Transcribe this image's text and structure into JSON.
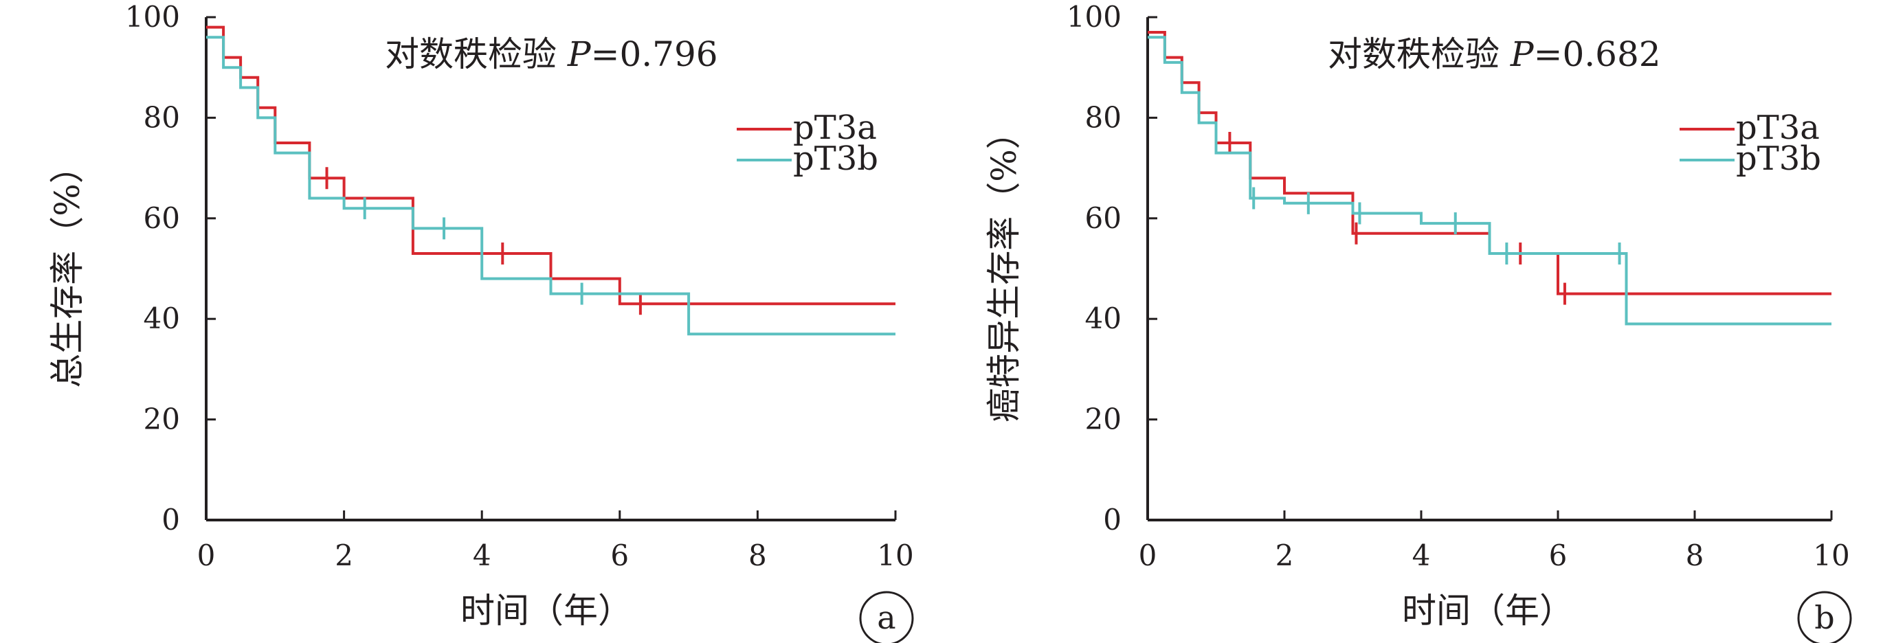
{
  "chart_data": [
    {
      "type": "line",
      "step": true,
      "panel_label": "a",
      "annotation": {
        "text": "对数秩检验 ",
        "p_symbol": "P",
        "p_value": "=0.796"
      },
      "xlabel": "时间（年）",
      "ylabel": "总生存率（%）",
      "xlim": [
        0,
        10
      ],
      "ylim": [
        0,
        100
      ],
      "xticks": [
        "0",
        "2",
        "4",
        "6",
        "8",
        "10"
      ],
      "yticks": [
        "0",
        "20",
        "40",
        "60",
        "80",
        "100"
      ],
      "grid": false,
      "legend_position": "top-right",
      "series": [
        {
          "name": "pT3a",
          "color": "#d7282f",
          "points": [
            [
              0,
              98
            ],
            [
              0.25,
              98
            ],
            [
              0.25,
              92
            ],
            [
              0.5,
              92
            ],
            [
              0.5,
              88
            ],
            [
              0.75,
              88
            ],
            [
              0.75,
              82
            ],
            [
              1,
              82
            ],
            [
              1,
              75
            ],
            [
              1.5,
              75
            ],
            [
              1.5,
              68
            ],
            [
              2,
              68
            ],
            [
              2,
              64
            ],
            [
              3,
              64
            ],
            [
              3,
              53
            ],
            [
              5,
              53
            ],
            [
              5,
              48
            ],
            [
              6,
              48
            ],
            [
              6,
              43
            ],
            [
              10,
              43
            ]
          ],
          "censor": [
            [
              1.75,
              68
            ],
            [
              4.3,
              53
            ],
            [
              6.3,
              43
            ]
          ]
        },
        {
          "name": "pT3b",
          "color": "#5bc0c0",
          "points": [
            [
              0,
              96
            ],
            [
              0.25,
              96
            ],
            [
              0.25,
              90
            ],
            [
              0.5,
              90
            ],
            [
              0.5,
              86
            ],
            [
              0.75,
              86
            ],
            [
              0.75,
              80
            ],
            [
              1,
              80
            ],
            [
              1,
              73
            ],
            [
              1.5,
              73
            ],
            [
              1.5,
              64
            ],
            [
              2,
              64
            ],
            [
              2,
              62
            ],
            [
              3,
              62
            ],
            [
              3,
              58
            ],
            [
              4,
              58
            ],
            [
              4,
              48
            ],
            [
              5,
              48
            ],
            [
              5,
              45
            ],
            [
              7,
              45
            ],
            [
              7,
              37
            ],
            [
              10,
              37
            ]
          ],
          "censor": [
            [
              2.3,
              62
            ],
            [
              3.45,
              58
            ],
            [
              5.45,
              45
            ]
          ]
        }
      ]
    },
    {
      "type": "line",
      "step": true,
      "panel_label": "b",
      "annotation": {
        "text": "对数秩检验 ",
        "p_symbol": "P",
        "p_value": "=0.682"
      },
      "xlabel": "时间（年）",
      "ylabel": "癌特异生存率（%）",
      "xlim": [
        0,
        10
      ],
      "ylim": [
        0,
        100
      ],
      "xticks": [
        "0",
        "2",
        "4",
        "6",
        "8",
        "10"
      ],
      "yticks": [
        "0",
        "20",
        "40",
        "60",
        "80",
        "100"
      ],
      "grid": false,
      "legend_position": "top-right",
      "series": [
        {
          "name": "pT3a",
          "color": "#d7282f",
          "points": [
            [
              0,
              97
            ],
            [
              0.25,
              97
            ],
            [
              0.25,
              92
            ],
            [
              0.5,
              92
            ],
            [
              0.5,
              87
            ],
            [
              0.75,
              87
            ],
            [
              0.75,
              81
            ],
            [
              1,
              81
            ],
            [
              1,
              75
            ],
            [
              1.5,
              75
            ],
            [
              1.5,
              68
            ],
            [
              2,
              68
            ],
            [
              2,
              65
            ],
            [
              3,
              65
            ],
            [
              3,
              57
            ],
            [
              5,
              57
            ],
            [
              5,
              53
            ],
            [
              6,
              53
            ],
            [
              6,
              45
            ],
            [
              10,
              45
            ]
          ],
          "censor": [
            [
              1.2,
              75
            ],
            [
              3.05,
              57
            ],
            [
              5.45,
              53
            ],
            [
              6.1,
              45
            ]
          ]
        },
        {
          "name": "pT3b",
          "color": "#5bc0c0",
          "points": [
            [
              0,
              96
            ],
            [
              0.25,
              96
            ],
            [
              0.25,
              91
            ],
            [
              0.5,
              91
            ],
            [
              0.5,
              85
            ],
            [
              0.75,
              85
            ],
            [
              0.75,
              79
            ],
            [
              1,
              79
            ],
            [
              1,
              73
            ],
            [
              1.5,
              73
            ],
            [
              1.5,
              64
            ],
            [
              2,
              64
            ],
            [
              2,
              63
            ],
            [
              3,
              63
            ],
            [
              3,
              61
            ],
            [
              4,
              61
            ],
            [
              4,
              59
            ],
            [
              5,
              59
            ],
            [
              5,
              53
            ],
            [
              7,
              53
            ],
            [
              7,
              39
            ],
            [
              10,
              39
            ]
          ],
          "censor": [
            [
              1.55,
              64
            ],
            [
              2.35,
              63
            ],
            [
              3.1,
              61
            ],
            [
              4.5,
              59
            ],
            [
              5.25,
              53
            ],
            [
              6.9,
              53
            ]
          ]
        }
      ]
    }
  ]
}
